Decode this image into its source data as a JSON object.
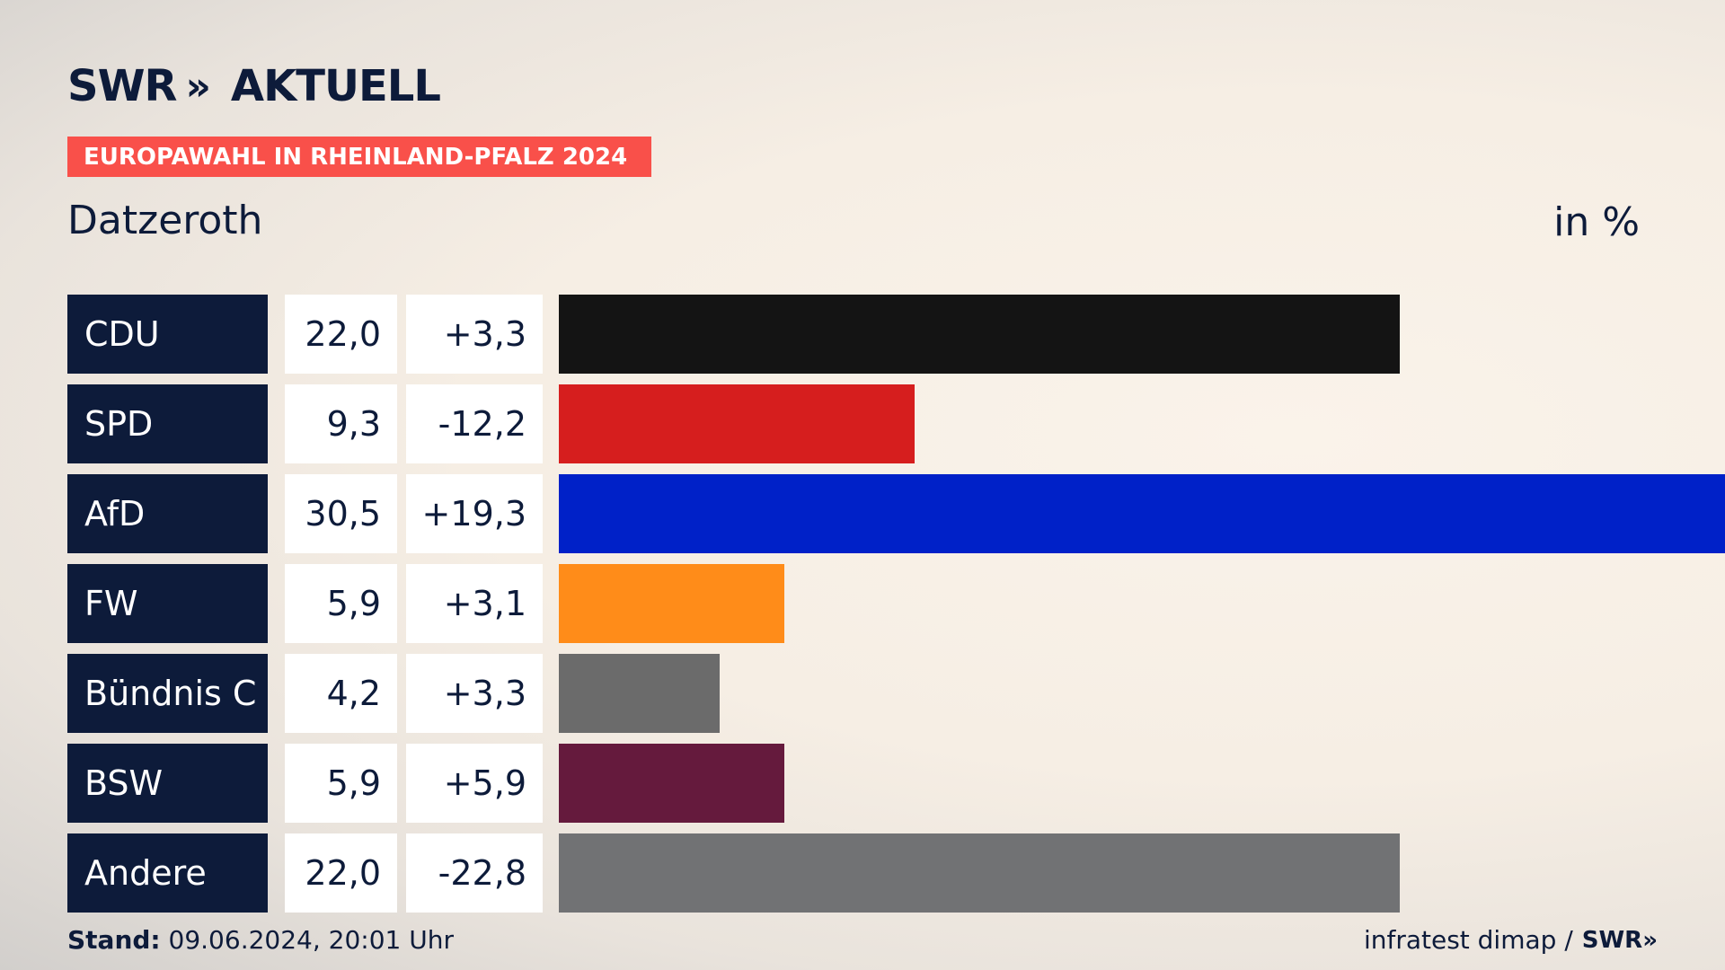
{
  "header": {
    "logo_brand": "SWR",
    "logo_chevrons": "»",
    "logo_product": "AKTUELL",
    "banner": "EUROPAWAHL IN RHEINLAND-PFALZ 2024",
    "place": "Datzeroth",
    "unit": "in %"
  },
  "chart_data": {
    "type": "bar",
    "categories": [
      "CDU",
      "SPD",
      "AfD",
      "FW",
      "Bündnis C",
      "BSW",
      "Andere"
    ],
    "values": [
      22.0,
      9.3,
      30.5,
      5.9,
      4.2,
      5.9,
      22.0
    ],
    "value_labels": [
      "22,0",
      "9,3",
      "30,5",
      "5,9",
      "4,2",
      "5,9",
      "22,0"
    ],
    "diff_labels": [
      "+3,3",
      "-12,2",
      "+19,3",
      "+3,1",
      "+3,3",
      "+5,9",
      "-22,8"
    ],
    "colors": [
      "#141414",
      "#d61e1e",
      "#0021c8",
      "#ff8c19",
      "#6b6b6b",
      "#651a3d",
      "#717274"
    ],
    "xlim": [
      0,
      30.5
    ]
  },
  "footer": {
    "stand_label": "Stand:",
    "stand_value": "09.06.2024, 20:01 Uhr",
    "source": "infratest dimap /",
    "source_logo": "SWR»"
  }
}
